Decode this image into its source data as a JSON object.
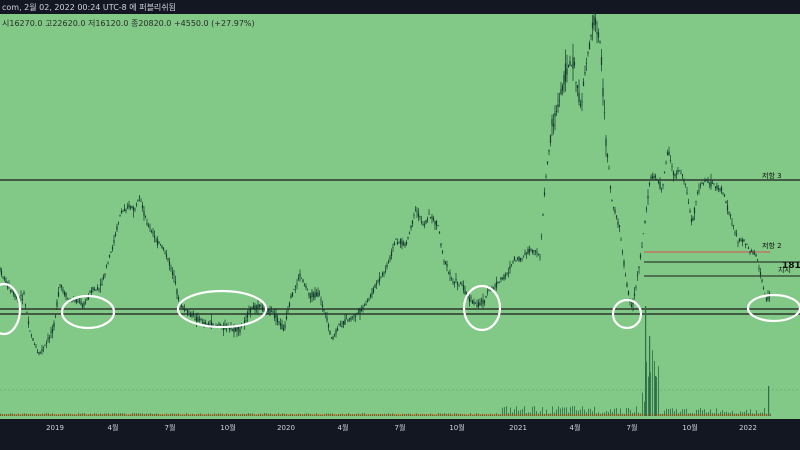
{
  "header": {
    "ohlc_text": "com, 2월 02, 2022 00:24 UTC-8 에 퍼블리쉬됨",
    "values_text": "시16270.0  고22620.0  저16120.0  종20820.0  +4550.0 (+27.97%)"
  },
  "colors": {
    "plot_bg": "#82c886",
    "axis_bg": "#131722",
    "candle": "#123b2e",
    "level_line": "#1b1b1b",
    "resistance_red": "#d9534f",
    "volume_orange": "#c98a3a",
    "circle": "#ffffff"
  },
  "chart_data": {
    "type": "candlestick",
    "title": "",
    "xlabel": "",
    "ylabel": "",
    "x_ticks": [
      "2019",
      "4월",
      "7월",
      "10월",
      "2020",
      "4월",
      "7월",
      "10월",
      "2021",
      "4월",
      "7월",
      "10월",
      "2022"
    ],
    "grid": false,
    "price_profile": [
      [
        0,
        270
      ],
      [
        10,
        290
      ],
      [
        18,
        300
      ],
      [
        24,
        295
      ],
      [
        30,
        330
      ],
      [
        38,
        355
      ],
      [
        46,
        345
      ],
      [
        54,
        325
      ],
      [
        60,
        285
      ],
      [
        68,
        300
      ],
      [
        76,
        300
      ],
      [
        84,
        305
      ],
      [
        92,
        290
      ],
      [
        100,
        290
      ],
      [
        106,
        270
      ],
      [
        112,
        250
      ],
      [
        120,
        215
      ],
      [
        128,
        205
      ],
      [
        134,
        210
      ],
      [
        140,
        200
      ],
      [
        148,
        225
      ],
      [
        156,
        240
      ],
      [
        164,
        250
      ],
      [
        172,
        270
      ],
      [
        180,
        305
      ],
      [
        190,
        315
      ],
      [
        200,
        320
      ],
      [
        210,
        325
      ],
      [
        220,
        325
      ],
      [
        230,
        330
      ],
      [
        240,
        330
      ],
      [
        250,
        310
      ],
      [
        258,
        305
      ],
      [
        266,
        310
      ],
      [
        274,
        315
      ],
      [
        284,
        330
      ],
      [
        292,
        295
      ],
      [
        300,
        275
      ],
      [
        310,
        295
      ],
      [
        320,
        295
      ],
      [
        332,
        340
      ],
      [
        340,
        325
      ],
      [
        348,
        320
      ],
      [
        356,
        315
      ],
      [
        366,
        305
      ],
      [
        376,
        285
      ],
      [
        386,
        270
      ],
      [
        396,
        240
      ],
      [
        406,
        245
      ],
      [
        416,
        210
      ],
      [
        424,
        225
      ],
      [
        430,
        215
      ],
      [
        438,
        225
      ],
      [
        444,
        260
      ],
      [
        452,
        280
      ],
      [
        462,
        285
      ],
      [
        470,
        300
      ],
      [
        478,
        305
      ],
      [
        484,
        300
      ],
      [
        490,
        290
      ],
      [
        496,
        285
      ],
      [
        506,
        275
      ],
      [
        514,
        260
      ],
      [
        520,
        260
      ],
      [
        530,
        250
      ],
      [
        540,
        255
      ],
      [
        546,
        175
      ],
      [
        552,
        125
      ],
      [
        560,
        100
      ],
      [
        566,
        70
      ],
      [
        574,
        60
      ],
      [
        580,
        110
      ],
      [
        588,
        50
      ],
      [
        594,
        20
      ],
      [
        600,
        40
      ],
      [
        606,
        140
      ],
      [
        612,
        200
      ],
      [
        620,
        230
      ],
      [
        626,
        280
      ],
      [
        632,
        310
      ],
      [
        638,
        275
      ],
      [
        644,
        230
      ],
      [
        650,
        180
      ],
      [
        656,
        175
      ],
      [
        662,
        190
      ],
      [
        668,
        150
      ],
      [
        674,
        175
      ],
      [
        680,
        170
      ],
      [
        686,
        185
      ],
      [
        692,
        225
      ],
      [
        698,
        190
      ],
      [
        706,
        180
      ],
      [
        714,
        185
      ],
      [
        722,
        190
      ],
      [
        730,
        215
      ],
      [
        738,
        240
      ],
      [
        744,
        240
      ],
      [
        750,
        250
      ],
      [
        756,
        255
      ],
      [
        762,
        280
      ],
      [
        766,
        300
      ],
      [
        770,
        295
      ]
    ],
    "horizontal_levels": [
      {
        "name": "저항 3",
        "role": "resistance"
      },
      {
        "name": "저항 2",
        "role": "resistance"
      },
      {
        "name": "181",
        "role": "level"
      },
      {
        "name": "지지",
        "role": "support"
      },
      {
        "name": "",
        "role": "support-band"
      }
    ]
  }
}
